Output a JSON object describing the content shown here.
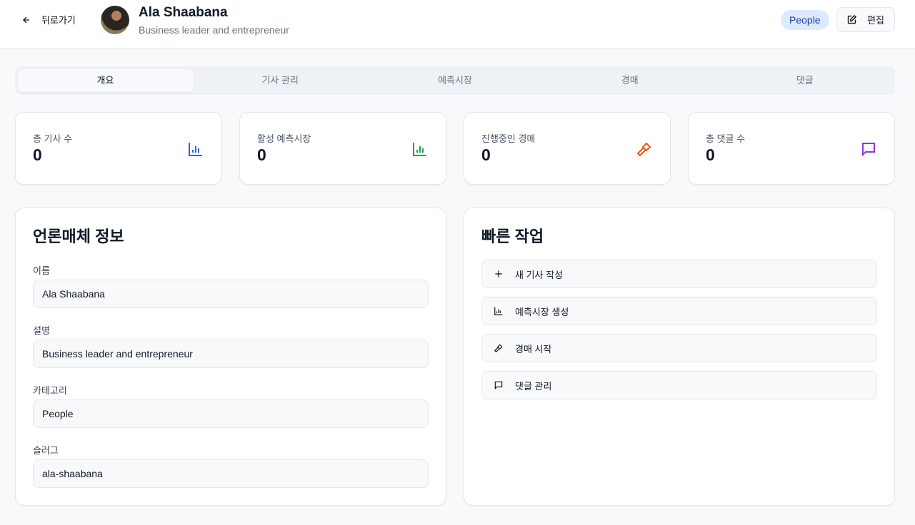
{
  "header": {
    "back_label": "뒤로가기",
    "title": "Ala Shaabana",
    "subtitle": "Business leader and entrepreneur",
    "badge": "People",
    "edit_label": "편집"
  },
  "tabs": [
    {
      "label": "개요",
      "active": true
    },
    {
      "label": "기사 관리"
    },
    {
      "label": "예측시장"
    },
    {
      "label": "경매"
    },
    {
      "label": "댓글"
    }
  ],
  "stats": [
    {
      "label": "총 기사 수",
      "value": "0",
      "icon": "bar-chart-icon",
      "color": "#2563eb"
    },
    {
      "label": "활성 예측시장",
      "value": "0",
      "icon": "bar-chart-icon",
      "color": "#16a34a"
    },
    {
      "label": "진행중인 경매",
      "value": "0",
      "icon": "gavel-icon",
      "color": "#ea580c"
    },
    {
      "label": "총 댓글 수",
      "value": "0",
      "icon": "message-icon",
      "color": "#9333ea"
    }
  ],
  "info": {
    "title": "언론매체 정보",
    "fields": [
      {
        "label": "이름",
        "value": "Ala Shaabana"
      },
      {
        "label": "설명",
        "value": "Business leader and entrepreneur"
      },
      {
        "label": "카테고리",
        "value": "People"
      },
      {
        "label": "슬러그",
        "value": "ala-shaabana"
      }
    ]
  },
  "quick": {
    "title": "빠른 작업",
    "actions": [
      {
        "label": "새 기사 작성",
        "icon": "plus-icon"
      },
      {
        "label": "예측시장 생성",
        "icon": "bar-chart-icon"
      },
      {
        "label": "경매 시작",
        "icon": "gavel-icon"
      },
      {
        "label": "댓글 관리",
        "icon": "message-icon"
      }
    ]
  }
}
